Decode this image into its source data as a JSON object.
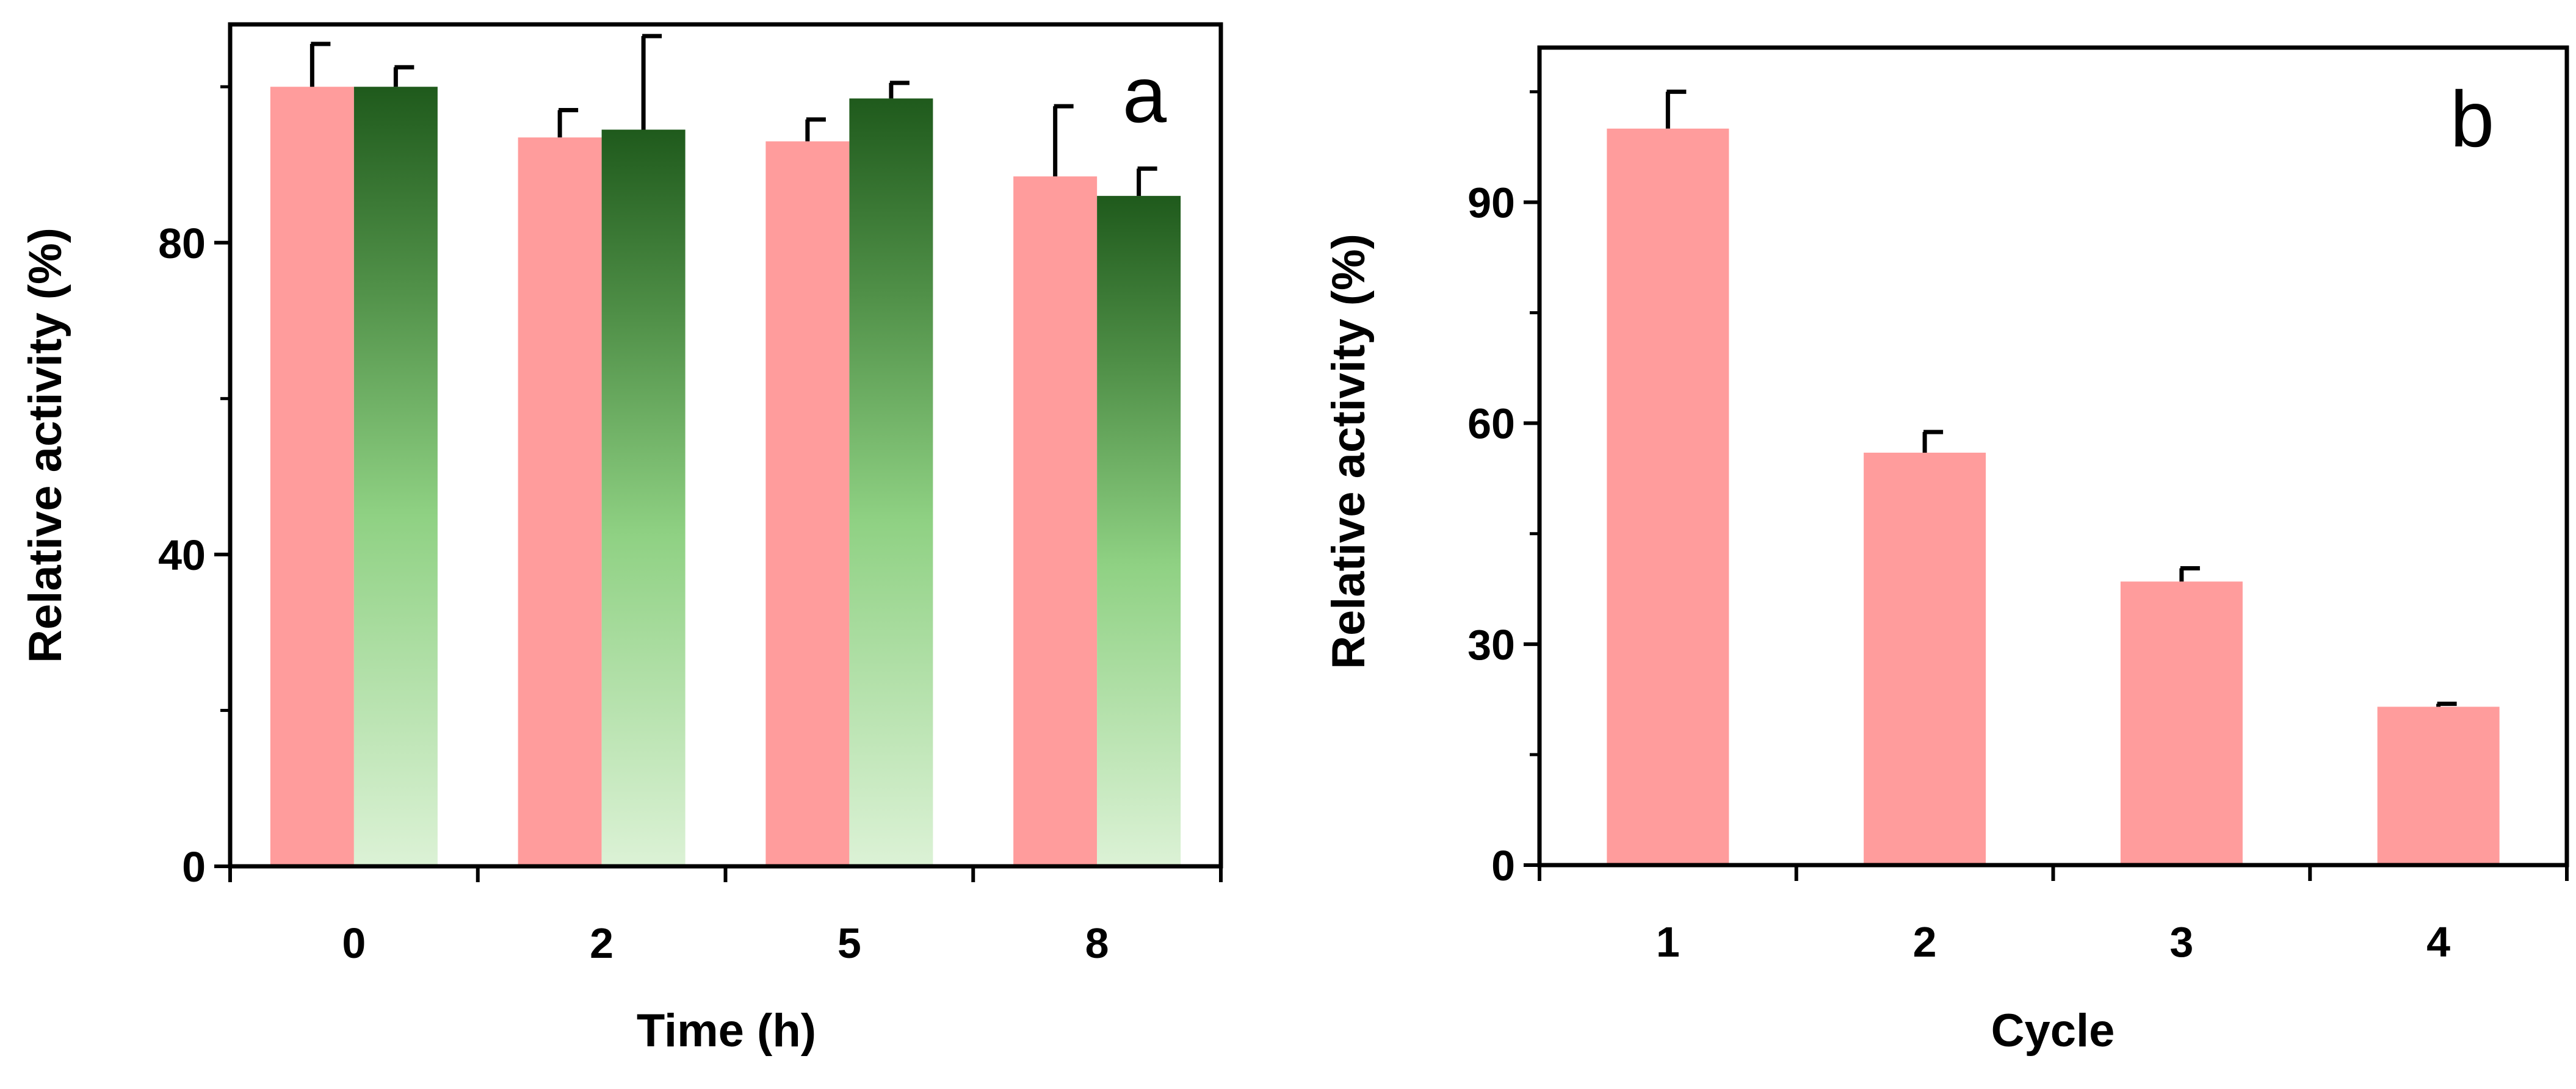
{
  "colors": {
    "pink_bar": "#ff9c9c",
    "green_dark": "#1f5a1c",
    "green_mid": "#8fd183",
    "green_light": "#dcf2d6",
    "axis": "#000000",
    "error_bar": "#000000"
  },
  "chart_data": [
    {
      "type": "bar",
      "panel_label": "a",
      "title": "",
      "xlabel": "Time (h)",
      "ylabel": "Relative activity (%)",
      "categories": [
        "0",
        "2",
        "5",
        "8"
      ],
      "ylim": [
        0,
        108
      ],
      "yticks": [
        0,
        40,
        80
      ],
      "yticks_minor": [
        20,
        60,
        100
      ],
      "yticks_labels": [
        "0",
        "40",
        "80"
      ],
      "series": [
        {
          "name": "series-1",
          "style": "pink",
          "values": [
            100,
            93.5,
            93,
            88.5
          ],
          "errors": [
            5.5,
            3.5,
            2.8,
            9
          ]
        },
        {
          "name": "series-2",
          "style": "green-gradient",
          "values": [
            100,
            94.5,
            98.5,
            86
          ],
          "errors": [
            2.5,
            12,
            2,
            3.5
          ]
        }
      ]
    },
    {
      "type": "bar",
      "panel_label": "b",
      "title": "",
      "xlabel": "Cycle",
      "ylabel": "Relative activity  (%)",
      "categories": [
        "1",
        "2",
        "3",
        "4"
      ],
      "ylim": [
        0,
        111
      ],
      "yticks": [
        0,
        30,
        60,
        90
      ],
      "yticks_minor": [
        15,
        45,
        75,
        105
      ],
      "yticks_labels": [
        "0",
        "30",
        "60",
        "90"
      ],
      "series": [
        {
          "name": "series-1",
          "style": "pink",
          "values": [
            100,
            56,
            38.5,
            21.5
          ],
          "errors": [
            5,
            2.8,
            1.8,
            0.4
          ]
        }
      ]
    }
  ]
}
